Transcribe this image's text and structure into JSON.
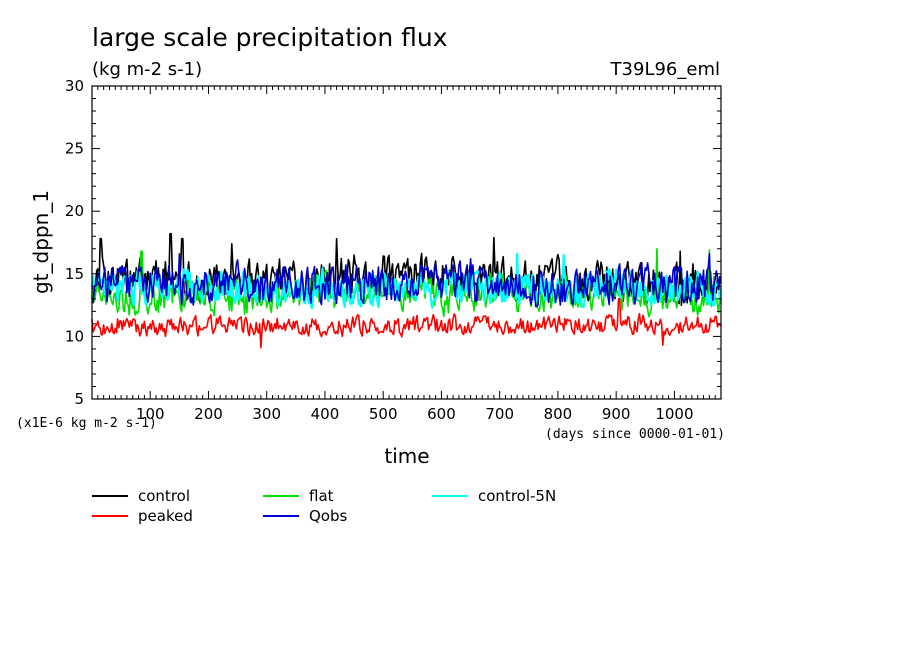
{
  "chart_data": {
    "type": "line",
    "title": "large scale precipitation flux",
    "subtitle": "(kg m-2 s-1)",
    "experiment": "T39L96_eml",
    "ylabel": "gt_dppn_1",
    "xlabel": "time",
    "ylim": [
      5,
      30
    ],
    "xlim": [
      0,
      1080
    ],
    "yticks": [
      5,
      10,
      15,
      20,
      25,
      30
    ],
    "xticks": [
      100,
      200,
      300,
      400,
      500,
      600,
      700,
      800,
      900,
      1000
    ],
    "yunit_note": "(x1E-6 kg m-2 s-1)",
    "xunit_note": "(days since 0000-01-01)",
    "legend_position": "bottom-left",
    "series": [
      {
        "name": "control",
        "color": "#000000",
        "mean": 14.5,
        "amp": 1.7,
        "spikes": [
          [
            15,
            17.8
          ],
          [
            135,
            18.2
          ],
          [
            155,
            17.8
          ],
          [
            240,
            17.4
          ],
          [
            420,
            17.8
          ],
          [
            690,
            17.9
          ],
          [
            1010,
            16.8
          ]
        ]
      },
      {
        "name": "flat",
        "color": "#00e000",
        "mean": 13.3,
        "amp": 1.5,
        "spikes": [
          [
            85,
            16.8
          ],
          [
            970,
            17.0
          ],
          [
            1060,
            16.9
          ]
        ]
      },
      {
        "name": "control-5N",
        "color": "#00ffff",
        "mean": 13.8,
        "amp": 1.4,
        "spikes": [
          [
            730,
            16.6
          ],
          [
            810,
            16.5
          ]
        ]
      },
      {
        "name": "peaked",
        "color": "#ff0000",
        "mean": 10.9,
        "amp": 0.8,
        "spikes": [
          [
            290,
            9.1
          ],
          [
            980,
            9.3
          ],
          [
            905,
            13.0
          ]
        ]
      },
      {
        "name": "Qobs",
        "color": "#0000d0",
        "mean": 14.0,
        "amp": 1.6,
        "spikes": [
          [
            1060,
            16.6
          ],
          [
            650,
            16.2
          ],
          [
            150,
            16.6
          ]
        ]
      }
    ],
    "legend": [
      {
        "label": "control",
        "color": "#000000"
      },
      {
        "label": "peaked",
        "color": "#ff0000"
      },
      {
        "label": "flat",
        "color": "#00e000"
      },
      {
        "label": "Qobs",
        "color": "#0000d0"
      },
      {
        "label": "control-5N",
        "color": "#00ffff"
      }
    ]
  }
}
